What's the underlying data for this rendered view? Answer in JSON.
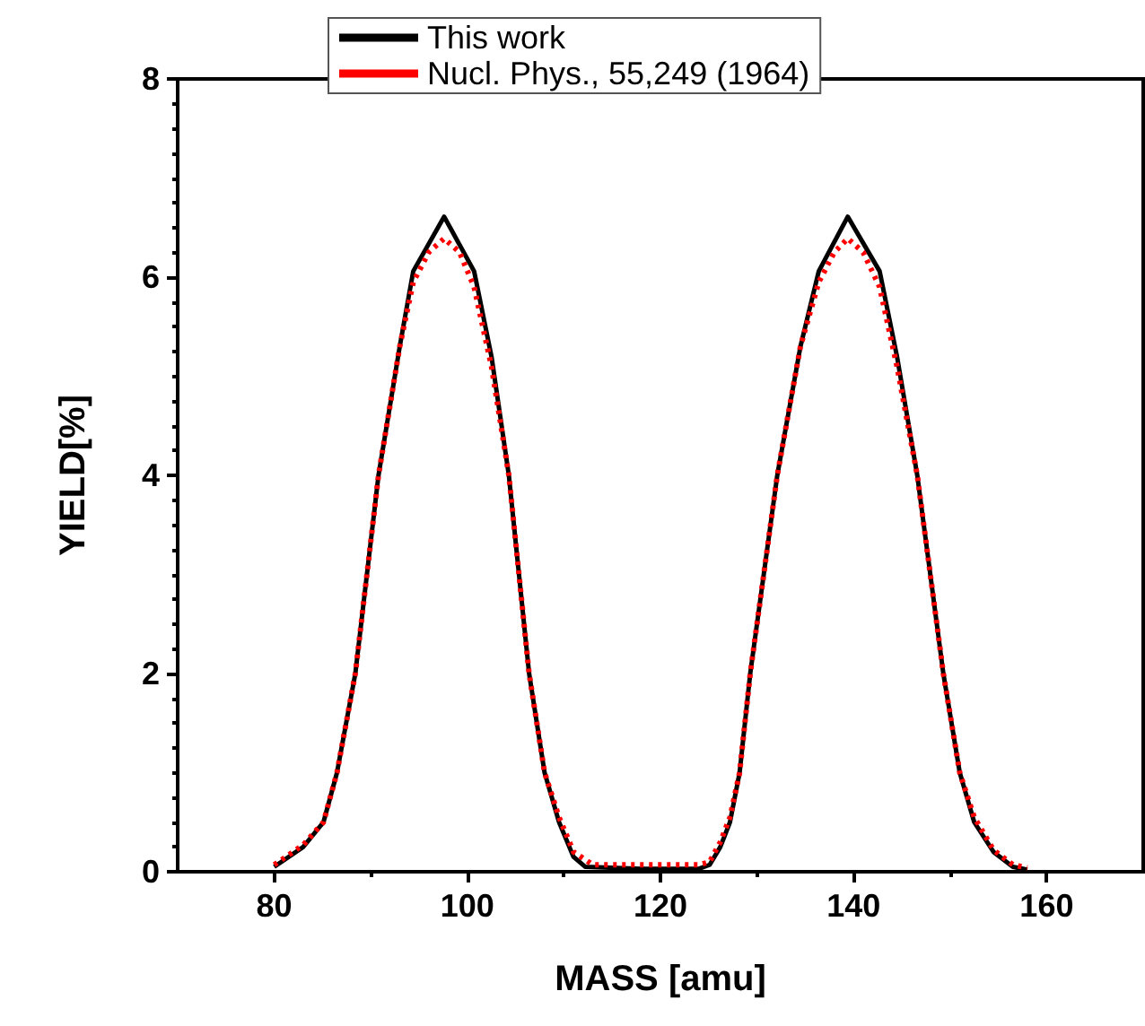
{
  "chart_data": {
    "type": "line",
    "xlabel": "MASS [amu]",
    "ylabel": "YIELD[%]",
    "xlim": [
      70,
      170
    ],
    "xticks": [
      80,
      100,
      120,
      140,
      160
    ],
    "ylim": [
      0,
      8
    ],
    "yticks": [
      0,
      2,
      4,
      6,
      8
    ],
    "grid": false,
    "legend": "top",
    "marker": "none",
    "series": [
      {
        "name": "This work",
        "color": "#000000",
        "line_style": "solid",
        "x": [
          80,
          83,
          85.1,
          86.5,
          88.4,
          90.8,
          93,
          94.4,
          97.6,
          100.7,
          102.5,
          104.3,
          106.4,
          108,
          109.5,
          111,
          112.2,
          118,
          124,
          125.1,
          126.2,
          127.2,
          128.2,
          129.3,
          132.1,
          134.5,
          136.4,
          139.4,
          142.7,
          144.5,
          146.6,
          149.3,
          151,
          152.5,
          154.5,
          156.5,
          158
        ],
        "values": [
          0.05,
          0.25,
          0.5,
          1.0,
          2.0,
          4.0,
          5.3,
          6.06,
          6.61,
          6.06,
          5.2,
          4.0,
          2.0,
          1.0,
          0.5,
          0.15,
          0.05,
          0.03,
          0.03,
          0.07,
          0.25,
          0.5,
          1.0,
          2.0,
          4.0,
          5.3,
          6.06,
          6.61,
          6.06,
          5.2,
          4.0,
          2.0,
          1.0,
          0.5,
          0.2,
          0.05,
          0.02
        ]
      },
      {
        "name": "Nucl. Phys., 55,249 (1964)",
        "color": "#ff0000",
        "line_style": "dotted",
        "x": [
          80,
          83,
          85.1,
          86.5,
          88.4,
          90.8,
          93,
          94.4,
          96,
          97.6,
          99.2,
          100.7,
          102.5,
          104.3,
          106.4,
          108,
          109.5,
          111,
          113,
          118,
          124,
          125.1,
          126.2,
          127.2,
          128.2,
          129.3,
          132.1,
          134.5,
          136.4,
          138,
          139.4,
          141,
          142.7,
          144.5,
          146.6,
          149.3,
          151,
          152.5,
          154.5,
          156.5,
          158
        ],
        "values": [
          0.07,
          0.27,
          0.5,
          1.0,
          2.0,
          4.0,
          5.3,
          5.95,
          6.25,
          6.39,
          6.25,
          5.9,
          5.1,
          4.0,
          2.0,
          1.0,
          0.55,
          0.2,
          0.07,
          0.07,
          0.07,
          0.1,
          0.3,
          0.55,
          1.0,
          2.0,
          4.0,
          5.3,
          5.95,
          6.25,
          6.39,
          6.25,
          5.9,
          5.1,
          4.0,
          2.0,
          1.0,
          0.55,
          0.22,
          0.07,
          0.04
        ]
      }
    ]
  }
}
